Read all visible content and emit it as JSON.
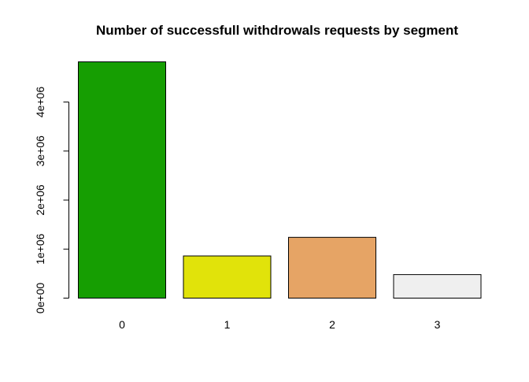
{
  "chart_data": {
    "type": "bar",
    "title": "Number of successfull withdrowals requests by segment",
    "xlabel": "",
    "ylabel": "",
    "categories": [
      "0",
      "1",
      "2",
      "3"
    ],
    "values": [
      4820000,
      860000,
      1240000,
      480000
    ],
    "colors": [
      "#169E02",
      "#E1E30A",
      "#E6A465",
      "#EFEFEF"
    ],
    "ylim": [
      0,
      4820000
    ],
    "yticks": [
      0,
      1000000,
      2000000,
      3000000,
      4000000
    ],
    "ytick_labels": [
      "0e+00",
      "1e+06",
      "2e+06",
      "3e+06",
      "4e+06"
    ],
    "grid": false,
    "legend": false
  }
}
